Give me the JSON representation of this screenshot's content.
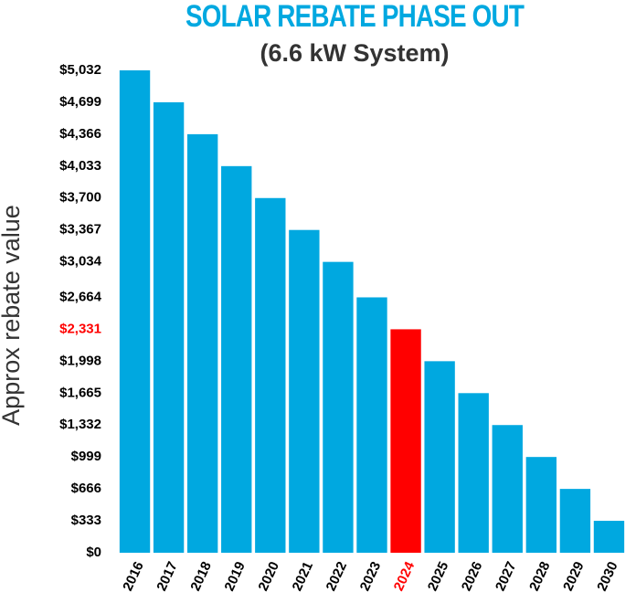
{
  "chart_data": {
    "type": "bar",
    "title": "SOLAR REBATE PHASE OUT",
    "subtitle": "(6.6 kW System)",
    "y_label": "Approx rebate value",
    "categories": [
      "2016",
      "2017",
      "2018",
      "2019",
      "2020",
      "2021",
      "2022",
      "2023",
      "2024",
      "2025",
      "2026",
      "2027",
      "2028",
      "2029",
      "2030"
    ],
    "values": [
      5032,
      4699,
      4366,
      4033,
      3700,
      3367,
      3034,
      2664,
      2331,
      1998,
      1665,
      1332,
      999,
      666,
      333
    ],
    "colors": [
      "#00a8e0",
      "#00a8e0",
      "#00a8e0",
      "#00a8e0",
      "#00a8e0",
      "#00a8e0",
      "#00a8e0",
      "#00a8e0",
      "#ff0000",
      "#00a8e0",
      "#00a8e0",
      "#00a8e0",
      "#00a8e0",
      "#00a8e0",
      "#00a8e0"
    ],
    "xtick_colors": [
      "#000000",
      "#000000",
      "#000000",
      "#000000",
      "#000000",
      "#000000",
      "#000000",
      "#000000",
      "#ff0000",
      "#000000",
      "#000000",
      "#000000",
      "#000000",
      "#000000",
      "#000000"
    ],
    "ylim": [
      0,
      5032
    ],
    "yticks": [
      {
        "value": 0,
        "label": "$0"
      },
      {
        "value": 333,
        "label": "$333"
      },
      {
        "value": 666,
        "label": "$666"
      },
      {
        "value": 999,
        "label": "$999"
      },
      {
        "value": 1332,
        "label": "$1,332"
      },
      {
        "value": 1665,
        "label": "$1,665"
      },
      {
        "value": 1998,
        "label": "$1,998"
      },
      {
        "value": 2331,
        "label": "$2,331"
      },
      {
        "value": 2664,
        "label": "$2,664"
      },
      {
        "value": 3034,
        "label": "$3,034"
      },
      {
        "value": 3367,
        "label": "$3,367"
      },
      {
        "value": 3700,
        "label": "$3,700"
      },
      {
        "value": 4033,
        "label": "$4,033"
      },
      {
        "value": 4366,
        "label": "$4,366"
      },
      {
        "value": 4699,
        "label": "$4,699"
      },
      {
        "value": 5032,
        "label": "$5,032"
      }
    ],
    "ytick_colors": [
      "#000000",
      "#000000",
      "#000000",
      "#000000",
      "#000000",
      "#000000",
      "#000000",
      "#ff0000",
      "#000000",
      "#000000",
      "#000000",
      "#000000",
      "#000000",
      "#000000",
      "#000000",
      "#000000"
    ],
    "title_color": "#00a8e0",
    "grid": false
  }
}
